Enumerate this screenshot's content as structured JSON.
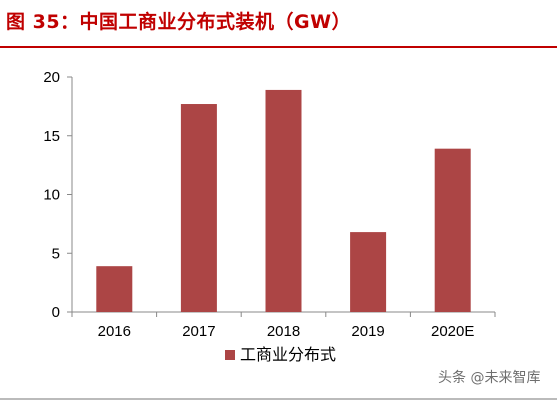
{
  "title": "图 35：中国工商业分布式装机（GW）",
  "colors": {
    "accent": "#c00000",
    "bar": "#ac4545",
    "axis": "#888888"
  },
  "chart_data": {
    "type": "bar",
    "title": "中国工商业分布式装机（GW）",
    "xlabel": "",
    "ylabel": "",
    "categories": [
      "2016",
      "2017",
      "2018",
      "2019",
      "2020E"
    ],
    "series": [
      {
        "name": "工商业分布式",
        "values": [
          3.9,
          17.7,
          18.9,
          6.8,
          13.9
        ]
      }
    ],
    "ylim": [
      0,
      20
    ],
    "yticks": [
      "0",
      "5",
      "10",
      "15",
      "20"
    ],
    "grid": false,
    "legend": "bottom"
  },
  "watermark": "头条 @未来智库"
}
